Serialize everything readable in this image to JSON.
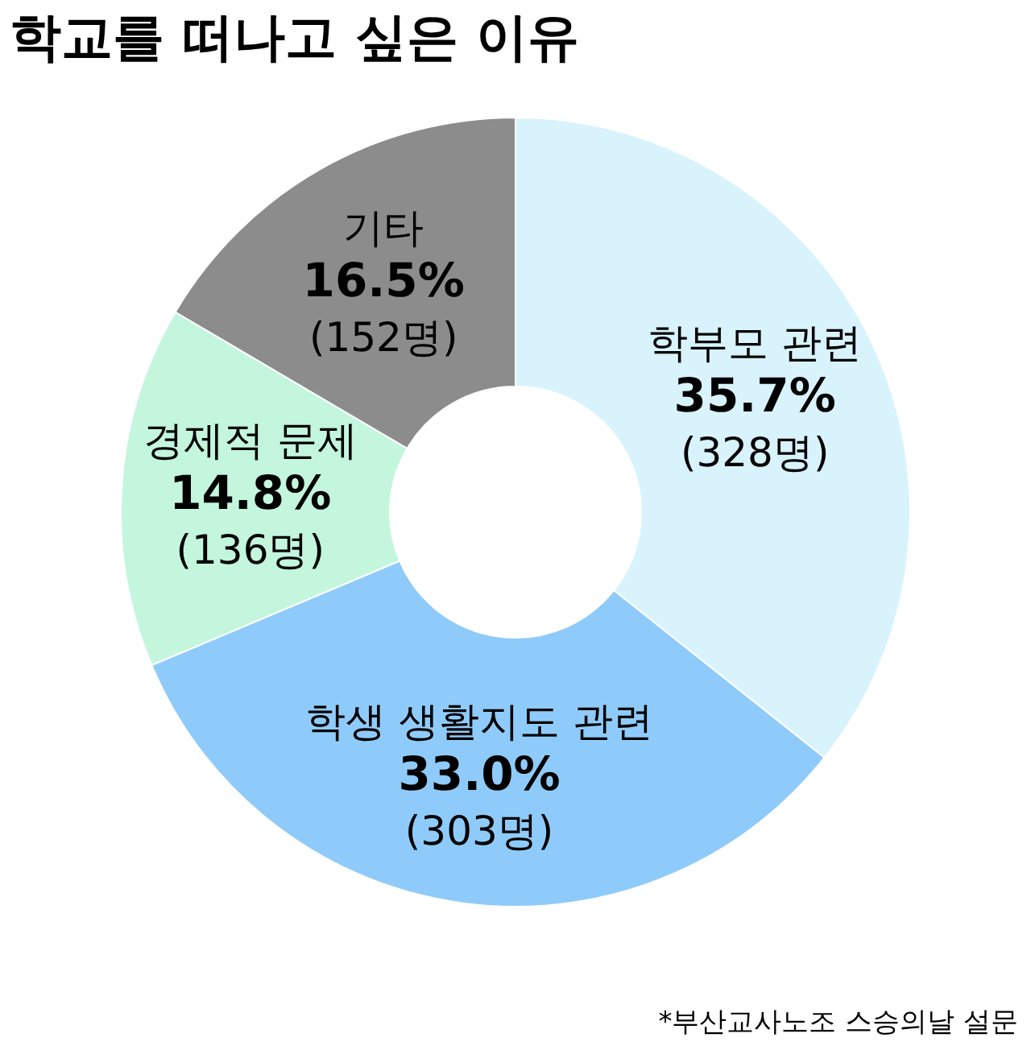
{
  "chart_data": {
    "type": "donut",
    "title": "학교를 떠나고 싶은 이유",
    "categories": [
      "학부모 관련",
      "학생 생활지도 관련",
      "경제적 문제",
      "기타"
    ],
    "values": [
      328,
      303,
      136,
      152
    ],
    "value_labels": [
      "35.7%\n(328명)",
      "33.0%\n(303명)",
      "14.8%\n(136명)",
      "16.5%\n(152명)"
    ],
    "colors": [
      "#d8f3fc",
      "#8fcbfa",
      "#c3f6dd",
      "#8c8c8c"
    ],
    "annotations": [
      "*부산교사노조 스승의날 설문"
    ]
  }
}
